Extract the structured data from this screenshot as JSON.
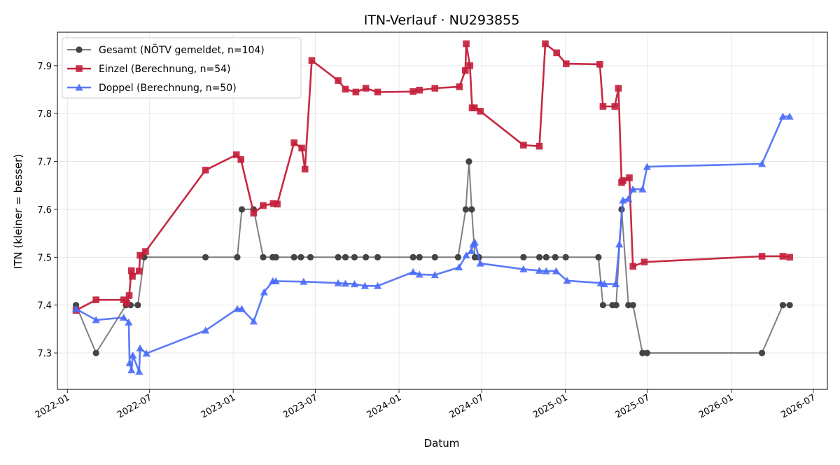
{
  "chart_data": {
    "type": "line",
    "title": "ITN-Verlauf · NU293855",
    "xlabel": "Datum",
    "ylabel": "ITN  (kleiner = besser)",
    "xlim": [
      "2021-12-10",
      "2026-08-01"
    ],
    "ylim": [
      7.224,
      7.97
    ],
    "x_ticks": [
      "2022-01",
      "2022-07",
      "2023-01",
      "2023-07",
      "2024-01",
      "2024-07",
      "2025-01",
      "2025-07",
      "2026-01",
      "2026-07"
    ],
    "y_ticks": [
      7.3,
      7.4,
      7.5,
      7.6,
      7.7,
      7.8,
      7.9
    ],
    "grid": true,
    "legend_position": "upper-left",
    "series": [
      {
        "name": "Gesamt (NÖTV gemeldet, n=104)",
        "color": "#555555",
        "marker": "circle",
        "points": [
          [
            "2022-01-20",
            7.4
          ],
          [
            "2022-03-05",
            7.3
          ],
          [
            "2022-05-10",
            7.4
          ],
          [
            "2022-05-20",
            7.4
          ],
          [
            "2022-06-05",
            7.4
          ],
          [
            "2022-06-19",
            7.5
          ],
          [
            "2022-11-01",
            7.5
          ],
          [
            "2023-01-10",
            7.5
          ],
          [
            "2023-01-20",
            7.6
          ],
          [
            "2023-02-15",
            7.6
          ],
          [
            "2023-03-08",
            7.5
          ],
          [
            "2023-03-29",
            7.5
          ],
          [
            "2023-04-05",
            7.5
          ],
          [
            "2023-05-15",
            7.5
          ],
          [
            "2023-05-30",
            7.5
          ],
          [
            "2023-06-20",
            7.5
          ],
          [
            "2023-08-20",
            7.5
          ],
          [
            "2023-09-05",
            7.5
          ],
          [
            "2023-09-25",
            7.5
          ],
          [
            "2023-10-20",
            7.5
          ],
          [
            "2023-11-15",
            7.5
          ],
          [
            "2024-02-01",
            7.5
          ],
          [
            "2024-02-15",
            7.5
          ],
          [
            "2024-03-20",
            7.5
          ],
          [
            "2024-05-10",
            7.5
          ],
          [
            "2024-05-27",
            7.6
          ],
          [
            "2024-06-03",
            7.7
          ],
          [
            "2024-06-09",
            7.6
          ],
          [
            "2024-06-16",
            7.5
          ],
          [
            "2024-06-25",
            7.5
          ],
          [
            "2024-10-01",
            7.5
          ],
          [
            "2024-11-05",
            7.5
          ],
          [
            "2024-11-20",
            7.5
          ],
          [
            "2024-12-10",
            7.5
          ],
          [
            "2025-01-02",
            7.5
          ],
          [
            "2025-03-15",
            7.5
          ],
          [
            "2025-03-25",
            7.4
          ],
          [
            "2025-04-15",
            7.4
          ],
          [
            "2025-04-23",
            7.4
          ],
          [
            "2025-05-05",
            7.6
          ],
          [
            "2025-05-20",
            7.4
          ],
          [
            "2025-05-30",
            7.4
          ],
          [
            "2025-06-20",
            7.3
          ],
          [
            "2025-06-30",
            7.3
          ],
          [
            "2026-03-10",
            7.3
          ],
          [
            "2026-04-25",
            7.4
          ],
          [
            "2026-05-10",
            7.4
          ]
        ]
      },
      {
        "name": "Einzel (Berechnung, n=54)",
        "color": "#c41e3a",
        "marker": "square",
        "points": [
          [
            "2022-01-20",
            7.389
          ],
          [
            "2022-03-05",
            7.411
          ],
          [
            "2022-05-05",
            7.411
          ],
          [
            "2022-05-12",
            7.404
          ],
          [
            "2022-05-17",
            7.42
          ],
          [
            "2022-05-22",
            7.472
          ],
          [
            "2022-05-24",
            7.46
          ],
          [
            "2022-06-08",
            7.471
          ],
          [
            "2022-06-10",
            7.504
          ],
          [
            "2022-06-22",
            7.512
          ],
          [
            "2022-11-01",
            7.682
          ],
          [
            "2023-01-08",
            7.714
          ],
          [
            "2023-01-18",
            7.704
          ],
          [
            "2023-02-15",
            7.592
          ],
          [
            "2023-03-08",
            7.608
          ],
          [
            "2023-03-30",
            7.612
          ],
          [
            "2023-04-08",
            7.611
          ],
          [
            "2023-05-15",
            7.739
          ],
          [
            "2023-06-01",
            7.728
          ],
          [
            "2023-06-08",
            7.684
          ],
          [
            "2023-06-23",
            7.911
          ],
          [
            "2023-08-20",
            7.869
          ],
          [
            "2023-09-05",
            7.851
          ],
          [
            "2023-09-28",
            7.845
          ],
          [
            "2023-10-20",
            7.853
          ],
          [
            "2023-11-15",
            7.845
          ],
          [
            "2024-02-01",
            7.846
          ],
          [
            "2024-02-15",
            7.849
          ],
          [
            "2024-03-20",
            7.853
          ],
          [
            "2024-05-13",
            7.856
          ],
          [
            "2024-05-26",
            7.89
          ],
          [
            "2024-05-28",
            7.946
          ],
          [
            "2024-06-05",
            7.9
          ],
          [
            "2024-06-10",
            7.812
          ],
          [
            "2024-06-15",
            7.812
          ],
          [
            "2024-06-28",
            7.805
          ],
          [
            "2024-10-01",
            7.734
          ],
          [
            "2024-11-05",
            7.732
          ],
          [
            "2024-11-18",
            7.946
          ],
          [
            "2024-12-13",
            7.927
          ],
          [
            "2025-01-03",
            7.904
          ],
          [
            "2025-03-18",
            7.903
          ],
          [
            "2025-03-25",
            7.815
          ],
          [
            "2025-04-20",
            7.815
          ],
          [
            "2025-04-28",
            7.853
          ],
          [
            "2025-05-05",
            7.656
          ],
          [
            "2025-05-08",
            7.66
          ],
          [
            "2025-05-22",
            7.666
          ],
          [
            "2025-05-30",
            7.481
          ],
          [
            "2025-06-24",
            7.49
          ],
          [
            "2026-03-10",
            7.502
          ],
          [
            "2026-04-25",
            7.502
          ],
          [
            "2026-05-10",
            7.5
          ]
        ]
      },
      {
        "name": "Doppel (Berechnung, n=50)",
        "color": "#4a6cf7",
        "marker": "triangle",
        "points": [
          [
            "2022-01-20",
            7.392
          ],
          [
            "2022-03-05",
            7.369
          ],
          [
            "2022-05-05",
            7.374
          ],
          [
            "2022-05-16",
            7.364
          ],
          [
            "2022-05-18",
            7.279
          ],
          [
            "2022-05-22",
            7.264
          ],
          [
            "2022-05-25",
            7.295
          ],
          [
            "2022-06-08",
            7.261
          ],
          [
            "2022-06-10",
            7.31
          ],
          [
            "2022-06-24",
            7.299
          ],
          [
            "2022-11-01",
            7.347
          ],
          [
            "2023-01-10",
            7.392
          ],
          [
            "2023-01-20",
            7.392
          ],
          [
            "2023-02-15",
            7.366
          ],
          [
            "2023-03-10",
            7.427
          ],
          [
            "2023-03-29",
            7.45
          ],
          [
            "2023-04-05",
            7.45
          ],
          [
            "2023-06-05",
            7.449
          ],
          [
            "2023-08-20",
            7.446
          ],
          [
            "2023-09-05",
            7.445
          ],
          [
            "2023-09-25",
            7.444
          ],
          [
            "2023-10-18",
            7.44
          ],
          [
            "2023-11-15",
            7.44
          ],
          [
            "2024-02-01",
            7.469
          ],
          [
            "2024-02-15",
            7.464
          ],
          [
            "2024-03-20",
            7.463
          ],
          [
            "2024-05-12",
            7.479
          ],
          [
            "2024-05-28",
            7.504
          ],
          [
            "2024-06-08",
            7.513
          ],
          [
            "2024-06-12",
            7.527
          ],
          [
            "2024-06-16",
            7.531
          ],
          [
            "2024-06-28",
            7.487
          ],
          [
            "2024-10-01",
            7.475
          ],
          [
            "2024-11-05",
            7.472
          ],
          [
            "2024-11-20",
            7.471
          ],
          [
            "2024-12-12",
            7.471
          ],
          [
            "2025-01-05",
            7.451
          ],
          [
            "2025-03-20",
            7.446
          ],
          [
            "2025-03-28",
            7.444
          ],
          [
            "2025-04-22",
            7.444
          ],
          [
            "2025-04-30",
            7.527
          ],
          [
            "2025-05-08",
            7.619
          ],
          [
            "2025-05-20",
            7.622
          ],
          [
            "2025-05-30",
            7.642
          ],
          [
            "2025-06-20",
            7.642
          ],
          [
            "2025-06-30",
            7.689
          ],
          [
            "2026-03-10",
            7.695
          ],
          [
            "2026-04-25",
            7.794
          ],
          [
            "2026-05-10",
            7.794
          ]
        ]
      }
    ]
  }
}
